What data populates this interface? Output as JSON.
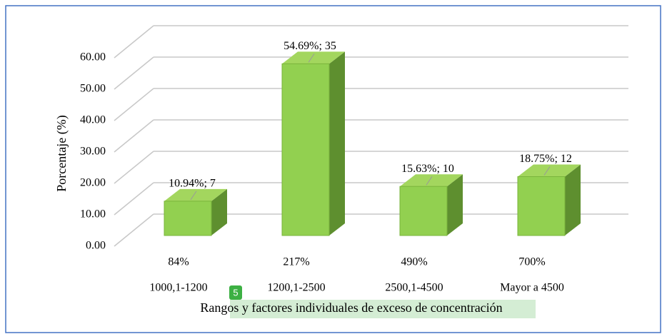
{
  "chart_data": {
    "type": "bar3d",
    "y_label": "Porcentaje (%)",
    "x_label": "Rangos y factores individuales de exceso de concentración",
    "badge": "5",
    "categories": [
      "84%",
      "217%",
      "490%",
      "700%"
    ],
    "category_ranges": [
      "1000,1-1200",
      "1200,1-2500",
      "2500,1-4500",
      "Mayor a 4500"
    ],
    "values": [
      10.94,
      54.69,
      15.63,
      18.75
    ],
    "value_labels": [
      "10.94%; 7",
      "54.69%; 35",
      "15.63%; 10",
      "18.75%; 12"
    ],
    "color": "#92d050",
    "ylim": [
      0,
      60
    ],
    "yticks": [
      {
        "value": 0,
        "label": "0.00"
      },
      {
        "value": 10,
        "label": "10.00"
      },
      {
        "value": 20,
        "label": "20.00"
      },
      {
        "value": 30,
        "label": "30.00"
      },
      {
        "value": 40,
        "label": "40.00"
      },
      {
        "value": 50,
        "label": "50.00"
      },
      {
        "value": 60,
        "label": "60.00"
      }
    ],
    "grid": true
  }
}
